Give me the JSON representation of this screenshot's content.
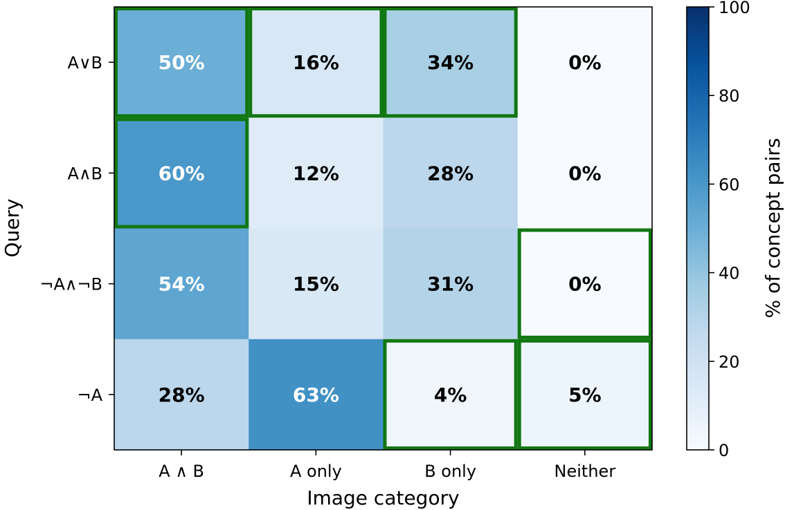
{
  "chart_data": {
    "type": "heatmap",
    "title": "",
    "xlabel": "Image category",
    "ylabel": "Query",
    "x_categories": [
      "A ∧ B",
      "A only",
      "B only",
      "Neither"
    ],
    "y_categories": [
      "A∨B",
      "A∧B",
      "¬A∧¬B",
      "¬A"
    ],
    "values": [
      [
        50,
        16,
        34,
        0
      ],
      [
        60,
        12,
        28,
        0
      ],
      [
        54,
        15,
        31,
        0
      ],
      [
        28,
        63,
        4,
        5
      ]
    ],
    "cell_labels": [
      [
        "50%",
        "16%",
        "34%",
        "0%"
      ],
      [
        "60%",
        "12%",
        "28%",
        "0%"
      ],
      [
        "54%",
        "15%",
        "31%",
        "0%"
      ],
      [
        "28%",
        "63%",
        "4%",
        "5%"
      ]
    ],
    "highlighted_cells": [
      [
        0,
        0
      ],
      [
        0,
        1
      ],
      [
        0,
        2
      ],
      [
        1,
        0
      ],
      [
        2,
        3
      ],
      [
        3,
        2
      ],
      [
        3,
        3
      ]
    ],
    "highlight_color": "#117711",
    "colormap": "Blues",
    "colorbar": {
      "label": "% of concept pairs",
      "range": [
        0,
        100
      ],
      "ticks": [
        0,
        20,
        40,
        60,
        80,
        100
      ],
      "tick_labels": [
        "0",
        "20",
        "40",
        "60",
        "80",
        "100"
      ]
    }
  }
}
